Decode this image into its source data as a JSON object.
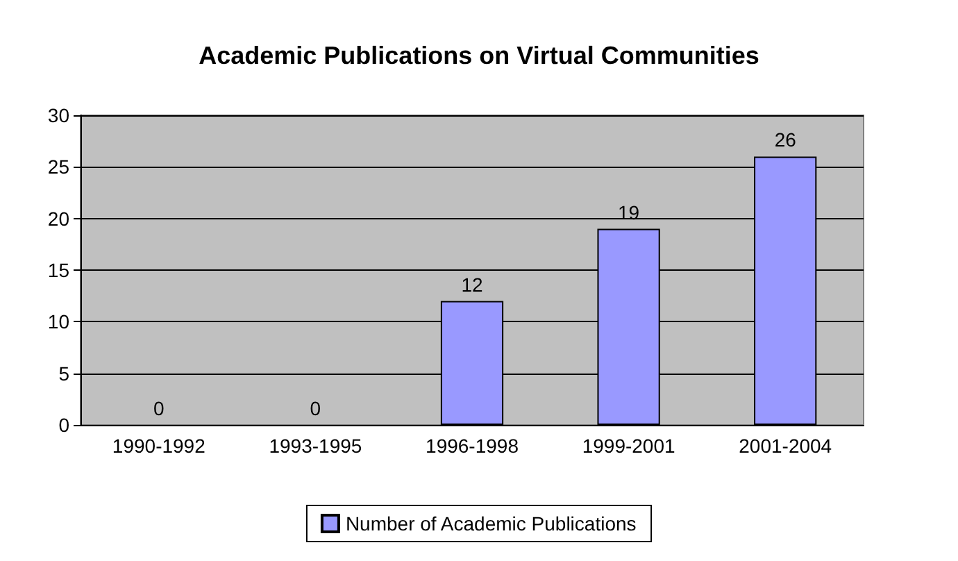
{
  "chart_data": {
    "type": "bar",
    "title": "Academic Publications on Virtual Communities",
    "categories": [
      "1990-1992",
      "1993-1995",
      "1996-1998",
      "1999-2001",
      "2001-2004"
    ],
    "series": [
      {
        "name": "Number of Academic Publications",
        "color": "#9999ff",
        "values": [
          0,
          0,
          12,
          19,
          26
        ]
      }
    ],
    "ylim": [
      0,
      30
    ],
    "yticks": [
      0,
      5,
      10,
      15,
      20,
      25,
      30
    ],
    "grid": "y",
    "legend": "bottom",
    "data_labels": true
  }
}
